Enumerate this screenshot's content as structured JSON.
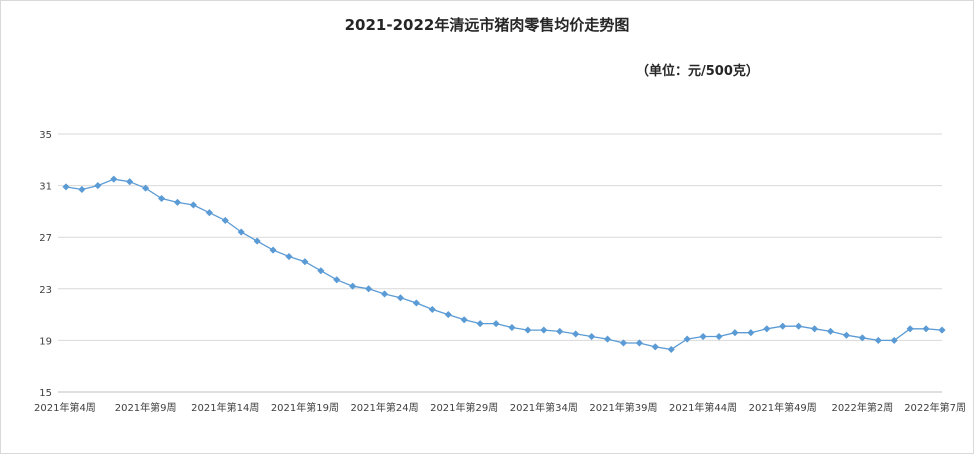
{
  "chart_data": {
    "type": "line",
    "title": "2021-2022年清远市猪肉零售均价走势图",
    "subtitle": "（单位：元/500克）",
    "xlabel": "",
    "ylabel": "",
    "ylim": [
      15,
      35
    ],
    "yticks": [
      15,
      19,
      23,
      27,
      31,
      35
    ],
    "grid": true,
    "legend": "none",
    "x_tick_labels": [
      "2021年第4周",
      "2021年第9周",
      "2021年第14周",
      "2021年第19周",
      "2021年第24周",
      "2021年第29周",
      "2021年第34周",
      "2021年第39周",
      "2021年第44周",
      "2021年第49周",
      "2022年第2周",
      "2022年第7周"
    ],
    "x_tick_indices": [
      0,
      5,
      10,
      15,
      20,
      25,
      30,
      35,
      40,
      45,
      50,
      55
    ],
    "series": [
      {
        "color": "#5b9bd5",
        "values": [
          30.9,
          30.7,
          31.0,
          31.5,
          31.3,
          30.8,
          30.0,
          29.7,
          29.5,
          28.9,
          28.3,
          27.4,
          26.7,
          26.0,
          25.5,
          25.1,
          24.4,
          23.7,
          23.2,
          23.0,
          22.6,
          22.3,
          21.9,
          21.4,
          21.0,
          20.6,
          20.3,
          20.3,
          20.0,
          19.8,
          19.8,
          19.7,
          19.5,
          19.3,
          19.1,
          18.8,
          18.8,
          18.5,
          18.3,
          19.1,
          19.3,
          19.3,
          19.6,
          19.6,
          19.9,
          20.1,
          20.1,
          19.9,
          19.7,
          19.4,
          19.2,
          19.0,
          19.0,
          19.9,
          19.9,
          19.8
        ]
      }
    ]
  }
}
